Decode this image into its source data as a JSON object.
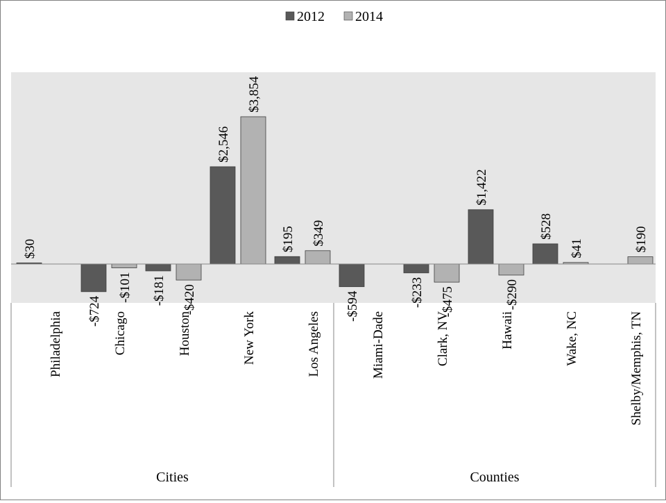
{
  "chart_data": {
    "type": "bar",
    "legend": {
      "position": "top",
      "entries": [
        {
          "name": "2012",
          "color": "#595959"
        },
        {
          "name": "2014",
          "color": "#b2b2b2"
        }
      ]
    },
    "groups": [
      {
        "label": "Cities",
        "categories": [
          "Philadelphia",
          "Chicago",
          "Houston",
          "New York",
          "Los Angeles"
        ]
      },
      {
        "label": "Counties",
        "categories": [
          "Miami-Dade",
          "Clark, NV",
          "Hawaii",
          "Wake, NC",
          "Shelby/Memphis, TN"
        ]
      }
    ],
    "categories": [
      "Philadelphia",
      "Chicago",
      "Houston",
      "New York",
      "Los Angeles",
      "Miami-Dade",
      "Clark, NV",
      "Hawaii",
      "Wake, NC",
      "Shelby/Memphis, TN"
    ],
    "series": [
      {
        "name": "2012",
        "color": "#595959",
        "values": [
          30,
          -724,
          -181,
          2546,
          195,
          -594,
          -233,
          1422,
          528,
          null
        ],
        "labels": [
          "$30",
          "-$724",
          "-$181",
          "$2,546",
          "$195",
          "-$594",
          "-$233",
          "$1,422",
          "$528",
          ""
        ]
      },
      {
        "name": "2014",
        "color": "#b2b2b2",
        "values": [
          null,
          -101,
          -420,
          3854,
          349,
          null,
          -475,
          -290,
          41,
          190
        ],
        "labels": [
          "",
          "-$101",
          "-$420",
          "$3,854",
          "$349",
          "",
          "-$475",
          "-$290",
          "$41",
          "$190"
        ]
      }
    ],
    "ylim": [
      -1000,
      5000
    ],
    "plot_area_color": "#e6e6e6",
    "grid": false
  }
}
